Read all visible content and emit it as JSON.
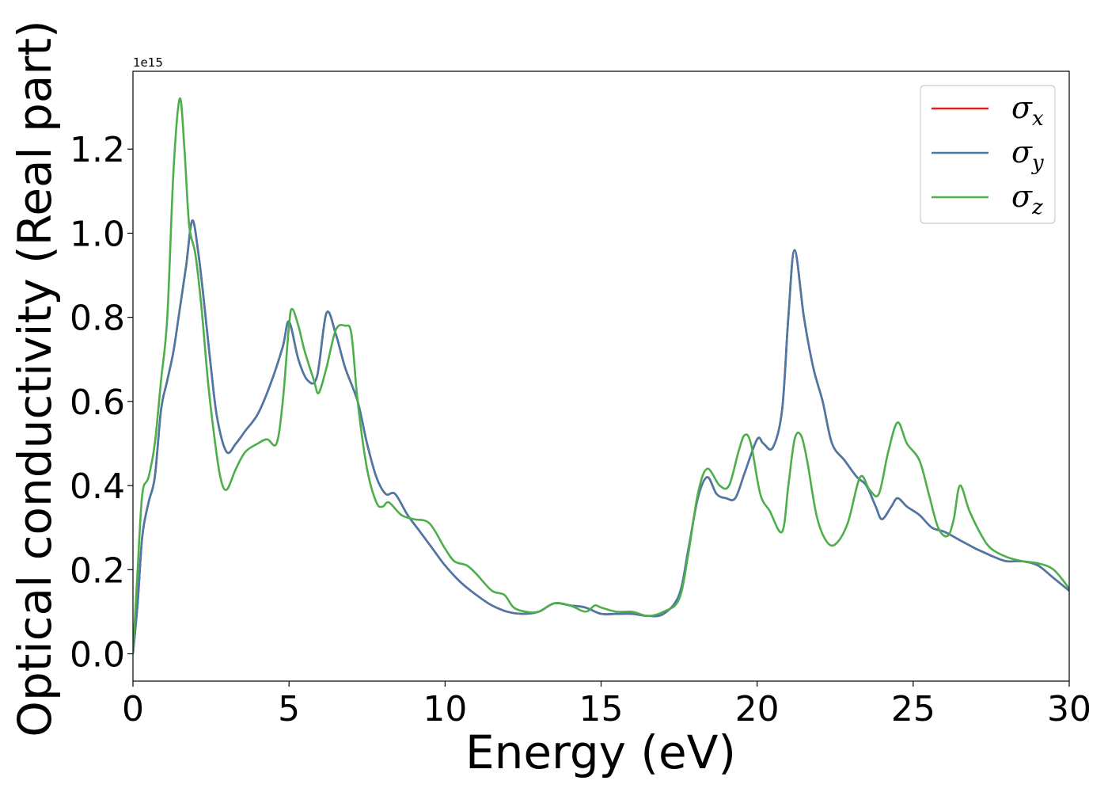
{
  "chart_data": {
    "type": "line",
    "xlabel": "Energy (eV)",
    "ylabel": "Optical conductivity (Real part)",
    "y_offset_label": "1e15",
    "xlim": [
      0,
      30
    ],
    "ylim": [
      -0.065,
      1.385
    ],
    "x_ticks": [
      0,
      5,
      10,
      15,
      20,
      25,
      30
    ],
    "x_tick_labels": [
      "0",
      "5",
      "10",
      "15",
      "20",
      "25",
      "30"
    ],
    "y_ticks": [
      0.0,
      0.2,
      0.4,
      0.6,
      0.8,
      1.0,
      1.2
    ],
    "y_tick_labels": [
      "0.0",
      "0.2",
      "0.4",
      "0.6",
      "0.8",
      "1.0",
      "1.2"
    ],
    "grid": false,
    "legend_position": "top-right",
    "series": [
      {
        "name": "σ",
        "subscript": "x",
        "color": "#e41a1c",
        "points": [
          [
            0.0,
            0.0
          ],
          [
            0.15,
            0.12
          ],
          [
            0.3,
            0.28
          ],
          [
            0.5,
            0.36
          ],
          [
            0.7,
            0.42
          ],
          [
            0.9,
            0.58
          ],
          [
            1.1,
            0.65
          ],
          [
            1.3,
            0.72
          ],
          [
            1.5,
            0.82
          ],
          [
            1.7,
            0.92
          ],
          [
            1.9,
            1.03
          ],
          [
            2.1,
            0.95
          ],
          [
            2.3,
            0.82
          ],
          [
            2.5,
            0.68
          ],
          [
            2.7,
            0.56
          ],
          [
            3.0,
            0.48
          ],
          [
            3.3,
            0.5
          ],
          [
            3.6,
            0.53
          ],
          [
            4.0,
            0.57
          ],
          [
            4.4,
            0.64
          ],
          [
            4.8,
            0.73
          ],
          [
            5.0,
            0.79
          ],
          [
            5.3,
            0.7
          ],
          [
            5.6,
            0.65
          ],
          [
            5.9,
            0.66
          ],
          [
            6.2,
            0.81
          ],
          [
            6.5,
            0.76
          ],
          [
            6.8,
            0.68
          ],
          [
            7.2,
            0.6
          ],
          [
            7.5,
            0.5
          ],
          [
            7.8,
            0.42
          ],
          [
            8.1,
            0.38
          ],
          [
            8.4,
            0.38
          ],
          [
            8.8,
            0.33
          ],
          [
            9.2,
            0.29
          ],
          [
            9.6,
            0.25
          ],
          [
            10.0,
            0.21
          ],
          [
            10.5,
            0.17
          ],
          [
            11.0,
            0.14
          ],
          [
            11.5,
            0.115
          ],
          [
            12.0,
            0.1
          ],
          [
            12.5,
            0.095
          ],
          [
            13.0,
            0.1
          ],
          [
            13.5,
            0.12
          ],
          [
            14.0,
            0.115
          ],
          [
            14.5,
            0.11
          ],
          [
            15.0,
            0.095
          ],
          [
            15.5,
            0.095
          ],
          [
            16.0,
            0.095
          ],
          [
            16.5,
            0.09
          ],
          [
            17.0,
            0.095
          ],
          [
            17.5,
            0.14
          ],
          [
            17.8,
            0.25
          ],
          [
            18.1,
            0.37
          ],
          [
            18.4,
            0.42
          ],
          [
            18.7,
            0.38
          ],
          [
            19.0,
            0.37
          ],
          [
            19.3,
            0.37
          ],
          [
            19.6,
            0.43
          ],
          [
            20.0,
            0.51
          ],
          [
            20.2,
            0.5
          ],
          [
            20.5,
            0.49
          ],
          [
            20.8,
            0.58
          ],
          [
            21.0,
            0.8
          ],
          [
            21.2,
            0.96
          ],
          [
            21.5,
            0.8
          ],
          [
            21.8,
            0.68
          ],
          [
            22.1,
            0.6
          ],
          [
            22.4,
            0.5
          ],
          [
            22.8,
            0.46
          ],
          [
            23.2,
            0.42
          ],
          [
            23.5,
            0.4
          ],
          [
            23.8,
            0.35
          ],
          [
            24.0,
            0.32
          ],
          [
            24.3,
            0.35
          ],
          [
            24.5,
            0.37
          ],
          [
            24.8,
            0.35
          ],
          [
            25.2,
            0.33
          ],
          [
            25.6,
            0.3
          ],
          [
            26.0,
            0.29
          ],
          [
            26.5,
            0.27
          ],
          [
            27.0,
            0.25
          ],
          [
            27.3,
            0.24
          ],
          [
            27.6,
            0.23
          ],
          [
            28.0,
            0.22
          ],
          [
            28.5,
            0.22
          ],
          [
            29.0,
            0.21
          ],
          [
            29.5,
            0.18
          ],
          [
            30.0,
            0.15
          ]
        ]
      },
      {
        "name": "σ",
        "subscript": "y",
        "color": "#4a79a8",
        "points": [
          [
            0.0,
            0.0
          ],
          [
            0.15,
            0.12
          ],
          [
            0.3,
            0.28
          ],
          [
            0.5,
            0.36
          ],
          [
            0.7,
            0.42
          ],
          [
            0.9,
            0.58
          ],
          [
            1.1,
            0.65
          ],
          [
            1.3,
            0.72
          ],
          [
            1.5,
            0.82
          ],
          [
            1.7,
            0.92
          ],
          [
            1.9,
            1.03
          ],
          [
            2.1,
            0.95
          ],
          [
            2.3,
            0.82
          ],
          [
            2.5,
            0.68
          ],
          [
            2.7,
            0.56
          ],
          [
            3.0,
            0.48
          ],
          [
            3.3,
            0.5
          ],
          [
            3.6,
            0.53
          ],
          [
            4.0,
            0.57
          ],
          [
            4.4,
            0.64
          ],
          [
            4.8,
            0.73
          ],
          [
            5.0,
            0.79
          ],
          [
            5.3,
            0.7
          ],
          [
            5.6,
            0.65
          ],
          [
            5.9,
            0.66
          ],
          [
            6.2,
            0.81
          ],
          [
            6.5,
            0.76
          ],
          [
            6.8,
            0.68
          ],
          [
            7.2,
            0.6
          ],
          [
            7.5,
            0.5
          ],
          [
            7.8,
            0.42
          ],
          [
            8.1,
            0.38
          ],
          [
            8.4,
            0.38
          ],
          [
            8.8,
            0.33
          ],
          [
            9.2,
            0.29
          ],
          [
            9.6,
            0.25
          ],
          [
            10.0,
            0.21
          ],
          [
            10.5,
            0.17
          ],
          [
            11.0,
            0.14
          ],
          [
            11.5,
            0.115
          ],
          [
            12.0,
            0.1
          ],
          [
            12.5,
            0.095
          ],
          [
            13.0,
            0.1
          ],
          [
            13.5,
            0.12
          ],
          [
            14.0,
            0.115
          ],
          [
            14.5,
            0.11
          ],
          [
            15.0,
            0.095
          ],
          [
            15.5,
            0.095
          ],
          [
            16.0,
            0.095
          ],
          [
            16.5,
            0.09
          ],
          [
            17.0,
            0.095
          ],
          [
            17.5,
            0.14
          ],
          [
            17.8,
            0.25
          ],
          [
            18.1,
            0.37
          ],
          [
            18.4,
            0.42
          ],
          [
            18.7,
            0.38
          ],
          [
            19.0,
            0.37
          ],
          [
            19.3,
            0.37
          ],
          [
            19.6,
            0.43
          ],
          [
            20.0,
            0.51
          ],
          [
            20.2,
            0.5
          ],
          [
            20.5,
            0.49
          ],
          [
            20.8,
            0.58
          ],
          [
            21.0,
            0.8
          ],
          [
            21.2,
            0.96
          ],
          [
            21.5,
            0.8
          ],
          [
            21.8,
            0.68
          ],
          [
            22.1,
            0.6
          ],
          [
            22.4,
            0.5
          ],
          [
            22.8,
            0.46
          ],
          [
            23.2,
            0.42
          ],
          [
            23.5,
            0.4
          ],
          [
            23.8,
            0.35
          ],
          [
            24.0,
            0.32
          ],
          [
            24.3,
            0.35
          ],
          [
            24.5,
            0.37
          ],
          [
            24.8,
            0.35
          ],
          [
            25.2,
            0.33
          ],
          [
            25.6,
            0.3
          ],
          [
            26.0,
            0.29
          ],
          [
            26.5,
            0.27
          ],
          [
            27.0,
            0.25
          ],
          [
            27.3,
            0.24
          ],
          [
            27.6,
            0.23
          ],
          [
            28.0,
            0.22
          ],
          [
            28.5,
            0.22
          ],
          [
            29.0,
            0.21
          ],
          [
            29.5,
            0.18
          ],
          [
            30.0,
            0.15
          ]
        ]
      },
      {
        "name": "σ",
        "subscript": "z",
        "color": "#4daf4a",
        "points": [
          [
            0.0,
            0.0
          ],
          [
            0.15,
            0.2
          ],
          [
            0.3,
            0.38
          ],
          [
            0.5,
            0.42
          ],
          [
            0.7,
            0.5
          ],
          [
            0.9,
            0.65
          ],
          [
            1.1,
            0.8
          ],
          [
            1.3,
            1.15
          ],
          [
            1.5,
            1.32
          ],
          [
            1.65,
            1.2
          ],
          [
            1.8,
            1.02
          ],
          [
            2.0,
            0.95
          ],
          [
            2.2,
            0.82
          ],
          [
            2.4,
            0.65
          ],
          [
            2.6,
            0.52
          ],
          [
            2.8,
            0.42
          ],
          [
            3.0,
            0.39
          ],
          [
            3.3,
            0.44
          ],
          [
            3.6,
            0.48
          ],
          [
            4.0,
            0.5
          ],
          [
            4.3,
            0.51
          ],
          [
            4.6,
            0.5
          ],
          [
            4.8,
            0.6
          ],
          [
            5.0,
            0.78
          ],
          [
            5.1,
            0.82
          ],
          [
            5.3,
            0.78
          ],
          [
            5.5,
            0.72
          ],
          [
            5.8,
            0.65
          ],
          [
            5.95,
            0.62
          ],
          [
            6.2,
            0.68
          ],
          [
            6.5,
            0.77
          ],
          [
            6.8,
            0.78
          ],
          [
            7.0,
            0.76
          ],
          [
            7.2,
            0.6
          ],
          [
            7.5,
            0.44
          ],
          [
            7.8,
            0.36
          ],
          [
            8.0,
            0.35
          ],
          [
            8.2,
            0.36
          ],
          [
            8.6,
            0.33
          ],
          [
            9.0,
            0.32
          ],
          [
            9.5,
            0.31
          ],
          [
            10.0,
            0.25
          ],
          [
            10.3,
            0.22
          ],
          [
            10.7,
            0.21
          ],
          [
            11.0,
            0.19
          ],
          [
            11.5,
            0.15
          ],
          [
            11.9,
            0.14
          ],
          [
            12.2,
            0.11
          ],
          [
            12.6,
            0.1
          ],
          [
            13.0,
            0.1
          ],
          [
            13.5,
            0.12
          ],
          [
            14.0,
            0.115
          ],
          [
            14.5,
            0.1
          ],
          [
            14.8,
            0.115
          ],
          [
            15.0,
            0.11
          ],
          [
            15.5,
            0.1
          ],
          [
            16.0,
            0.1
          ],
          [
            16.5,
            0.09
          ],
          [
            17.0,
            0.1
          ],
          [
            17.5,
            0.13
          ],
          [
            17.8,
            0.24
          ],
          [
            18.1,
            0.38
          ],
          [
            18.4,
            0.44
          ],
          [
            18.8,
            0.4
          ],
          [
            19.1,
            0.4
          ],
          [
            19.4,
            0.48
          ],
          [
            19.6,
            0.52
          ],
          [
            19.8,
            0.5
          ],
          [
            20.1,
            0.38
          ],
          [
            20.4,
            0.34
          ],
          [
            20.8,
            0.29
          ],
          [
            21.0,
            0.4
          ],
          [
            21.2,
            0.51
          ],
          [
            21.4,
            0.52
          ],
          [
            21.6,
            0.46
          ],
          [
            21.9,
            0.33
          ],
          [
            22.2,
            0.27
          ],
          [
            22.5,
            0.26
          ],
          [
            22.9,
            0.31
          ],
          [
            23.3,
            0.42
          ],
          [
            23.6,
            0.39
          ],
          [
            23.9,
            0.38
          ],
          [
            24.2,
            0.48
          ],
          [
            24.5,
            0.55
          ],
          [
            24.8,
            0.5
          ],
          [
            25.2,
            0.46
          ],
          [
            25.5,
            0.38
          ],
          [
            25.8,
            0.3
          ],
          [
            26.1,
            0.28
          ],
          [
            26.3,
            0.32
          ],
          [
            26.5,
            0.4
          ],
          [
            26.8,
            0.34
          ],
          [
            27.2,
            0.28
          ],
          [
            27.5,
            0.25
          ],
          [
            28.0,
            0.23
          ],
          [
            28.5,
            0.22
          ],
          [
            29.0,
            0.215
          ],
          [
            29.5,
            0.2
          ],
          [
            30.0,
            0.155
          ]
        ]
      }
    ]
  }
}
